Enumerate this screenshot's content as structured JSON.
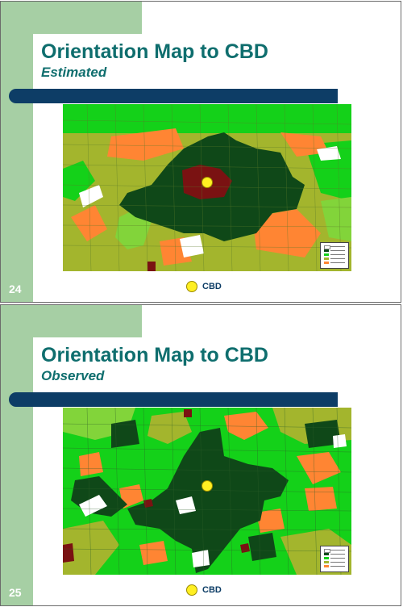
{
  "slides": [
    {
      "number": "24",
      "title": "Orientation Map to CBD",
      "subtitle": "Estimated",
      "legend_label": "CBD",
      "map_type": "estimated"
    },
    {
      "number": "25",
      "title": "Orientation Map to CBD",
      "subtitle": "Observed",
      "legend_label": "CBD",
      "map_type": "observed"
    }
  ],
  "colors": {
    "band": "#a6cfa4",
    "title": "#0f6e6e",
    "bar": "#0d3d66",
    "cbd_marker": "#ffef22",
    "map_classes": [
      "#14d119",
      "#a3b52d",
      "#ff8533",
      "#0f4818",
      "#82d43a",
      "#7a1212"
    ]
  },
  "icons": [
    "cbd-marker-icon",
    "map-legend-icon"
  ]
}
